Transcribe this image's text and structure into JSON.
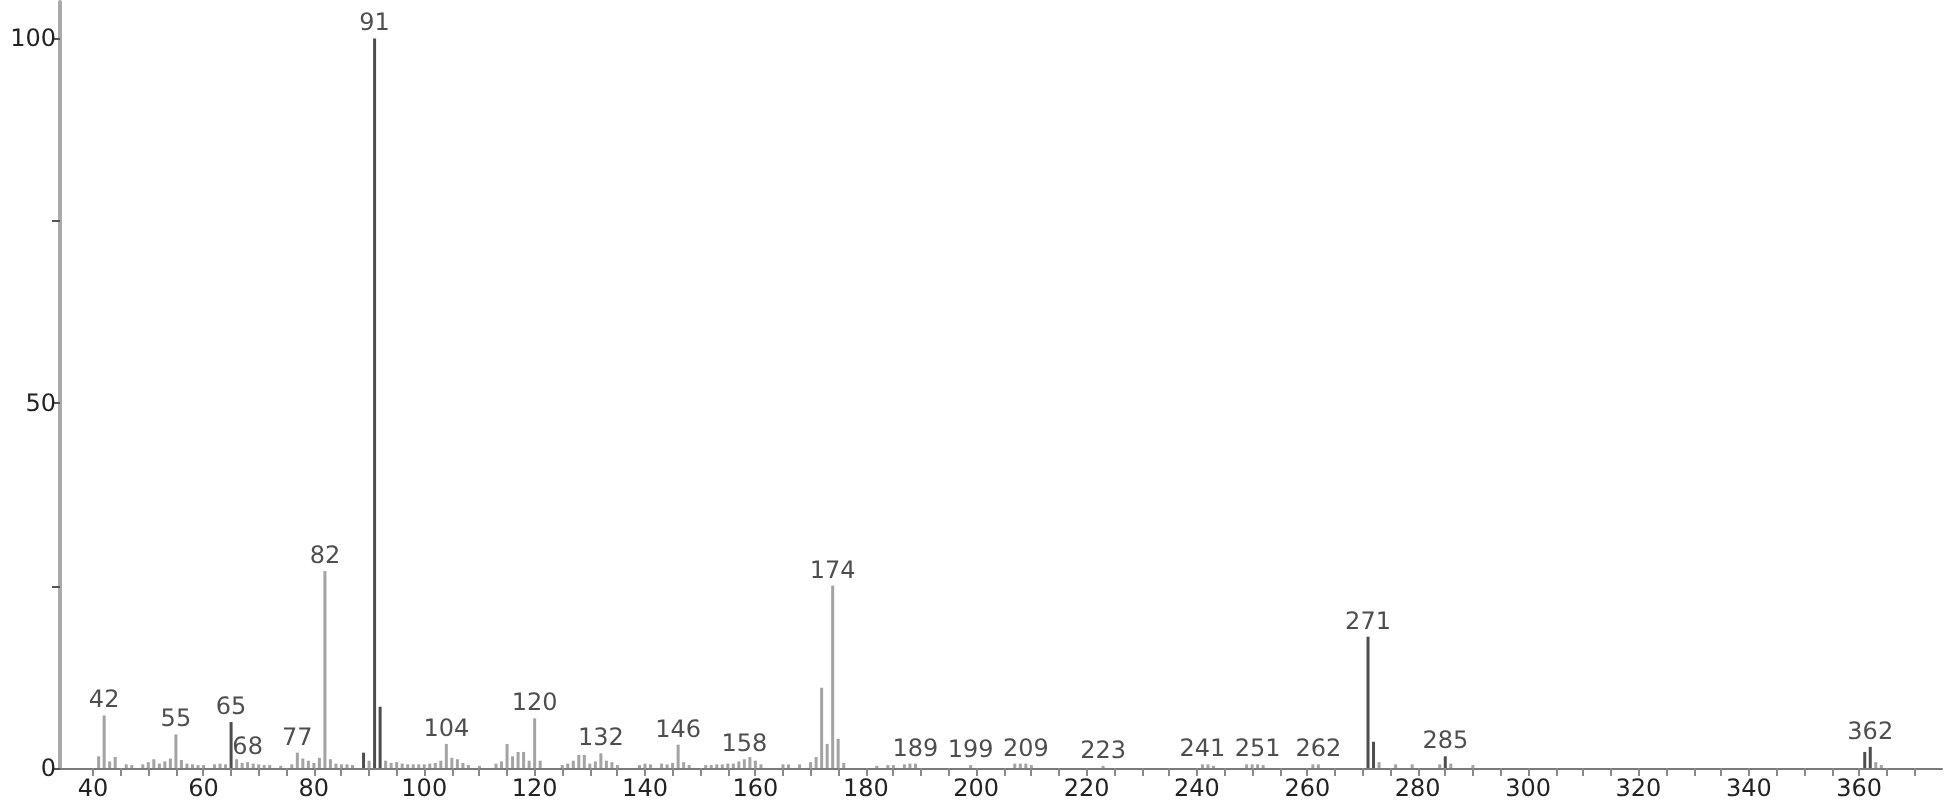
{
  "chart_data": {
    "type": "bar",
    "xlim": [
      34,
      375
    ],
    "xticks": [
      40,
      {
        "value": 45,
        "label": null
      },
      {
        "value": 50,
        "label": null
      },
      {
        "value": 55,
        "label": null
      },
      60,
      {
        "value": 65,
        "label": null
      },
      {
        "value": 70,
        "label": null
      },
      {
        "value": 75,
        "label": null
      },
      80,
      {
        "value": 85,
        "label": null
      },
      {
        "value": 90,
        "label": null
      },
      {
        "value": 95,
        "label": null
      },
      100,
      {
        "value": 105,
        "label": null
      },
      {
        "value": 110,
        "label": null
      },
      {
        "value": 115,
        "label": null
      },
      120,
      {
        "value": 125,
        "label": null
      },
      {
        "value": 130,
        "label": null
      },
      {
        "value": 135,
        "label": null
      },
      140,
      {
        "value": 145,
        "label": null
      },
      {
        "value": 150,
        "label": null
      },
      {
        "value": 155,
        "label": null
      },
      160,
      {
        "value": 165,
        "label": null
      },
      {
        "value": 170,
        "label": null
      },
      {
        "value": 175,
        "label": null
      },
      180,
      {
        "value": 185,
        "label": null
      },
      {
        "value": 190,
        "label": null
      },
      {
        "value": 195,
        "label": null
      },
      200,
      {
        "value": 205,
        "label": null
      },
      {
        "value": 210,
        "label": null
      },
      {
        "value": 215,
        "label": null
      },
      220,
      {
        "value": 225,
        "label": null
      },
      {
        "value": 230,
        "label": null
      },
      {
        "value": 235,
        "label": null
      },
      240,
      {
        "value": 245,
        "label": null
      },
      {
        "value": 250,
        "label": null
      },
      {
        "value": 255,
        "label": null
      },
      260,
      {
        "value": 265,
        "label": null
      },
      {
        "value": 270,
        "label": null
      },
      {
        "value": 275,
        "label": null
      },
      280,
      {
        "value": 285,
        "label": null
      },
      {
        "value": 290,
        "label": null
      },
      {
        "value": 295,
        "label": null
      },
      300,
      {
        "value": 305,
        "label": null
      },
      {
        "value": 310,
        "label": null
      },
      {
        "value": 315,
        "label": null
      },
      320,
      {
        "value": 325,
        "label": null
      },
      {
        "value": 330,
        "label": null
      },
      {
        "value": 335,
        "label": null
      },
      340,
      {
        "value": 345,
        "label": null
      },
      {
        "value": 350,
        "label": null
      },
      {
        "value": 355,
        "label": null
      },
      360,
      {
        "value": 365,
        "label": null
      },
      {
        "value": 370,
        "label": null
      }
    ],
    "ylim": [
      0,
      105
    ],
    "yticks": [
      0,
      {
        "value": 25,
        "label": null
      },
      50,
      {
        "value": 75,
        "label": null
      },
      100
    ],
    "grid": false,
    "series": [
      {
        "color": "#a3a3a3",
        "x": [
          41,
          42,
          43,
          44,
          46,
          47,
          49,
          50,
          51,
          52,
          53,
          54,
          55,
          56,
          57,
          58,
          59,
          60,
          62,
          63,
          64,
          66,
          67,
          68,
          69,
          70,
          71,
          72,
          74,
          76,
          77,
          78,
          79,
          80,
          81,
          82,
          83,
          84,
          85,
          86,
          87,
          90,
          93,
          94,
          95,
          96,
          97,
          98,
          99,
          100,
          101,
          102,
          103,
          104,
          105,
          106,
          107,
          108,
          110,
          113,
          114,
          115,
          116,
          117,
          118,
          119,
          120,
          121,
          125,
          126,
          127,
          128,
          129,
          130,
          131,
          132,
          133,
          134,
          135,
          139,
          140,
          141,
          143,
          144,
          145,
          146,
          147,
          148,
          151,
          152,
          153,
          154,
          155,
          156,
          157,
          158,
          159,
          160,
          161,
          165,
          166,
          168,
          170,
          171,
          172,
          173,
          174,
          175,
          176,
          182,
          184,
          185,
          187,
          188,
          189,
          199,
          207,
          208,
          209,
          210,
          223,
          241,
          242,
          243,
          249,
          250,
          251,
          252,
          261,
          262,
          273,
          276,
          279,
          284,
          286,
          290,
          363,
          364
        ],
        "values": [
          1.6,
          7.2,
          0.9,
          1.5,
          0.5,
          0.4,
          0.5,
          0.8,
          1.2,
          0.6,
          0.9,
          1.3,
          4.6,
          1.1,
          0.6,
          0.5,
          0.4,
          0.4,
          0.5,
          0.6,
          0.5,
          1.2,
          0.7,
          0.8,
          0.6,
          0.5,
          0.4,
          0.4,
          0.3,
          0.5,
          2.1,
          1.3,
          1.0,
          0.7,
          1.4,
          27,
          1.2,
          0.6,
          0.5,
          0.5,
          0.4,
          1.0,
          1.0,
          0.7,
          0.8,
          0.6,
          0.5,
          0.5,
          0.5,
          0.5,
          0.6,
          0.7,
          1.0,
          3.3,
          1.4,
          1.2,
          0.7,
          0.4,
          0.3,
          0.6,
          0.9,
          3.3,
          1.6,
          2.2,
          2.2,
          1.0,
          6.8,
          1.0,
          0.4,
          0.6,
          1.0,
          1.8,
          1.8,
          0.6,
          0.9,
          2.0,
          1.0,
          0.8,
          0.4,
          0.4,
          0.6,
          0.5,
          0.6,
          0.5,
          0.7,
          3.2,
          0.8,
          0.4,
          0.4,
          0.4,
          0.5,
          0.5,
          0.6,
          0.6,
          0.9,
          1.2,
          1.5,
          1.0,
          0.5,
          0.5,
          0.5,
          0.5,
          0.8,
          1.5,
          11,
          3.3,
          25,
          4,
          0.7,
          0.3,
          0.4,
          0.4,
          0.5,
          0.6,
          0.6,
          0.4,
          0.6,
          0.6,
          0.6,
          0.4,
          0.3,
          0.5,
          0.5,
          0.3,
          0.5,
          0.5,
          0.5,
          0.4,
          0.5,
          0.5,
          0.8,
          0.5,
          0.5,
          0.5,
          0.6,
          0.4,
          0.8,
          0.4
        ]
      },
      {
        "color": "#4d4d4d",
        "x": [
          65,
          89,
          91,
          92,
          271,
          272,
          285,
          361,
          362
        ],
        "values": [
          6.3,
          2.1,
          100,
          8.4,
          18,
          3.6,
          1.6,
          2.2,
          2.9
        ]
      }
    ],
    "annotations": [
      {
        "text": "42",
        "x": 42,
        "y": 7.2
      },
      {
        "text": "55",
        "x": 55,
        "y": 4.6
      },
      {
        "text": "65",
        "x": 65,
        "y": 6.3
      },
      {
        "text": "68",
        "x": 68,
        "y": 0.8
      },
      {
        "text": "77",
        "x": 77,
        "y": 2.1
      },
      {
        "text": "82",
        "x": 82,
        "y": 27
      },
      {
        "text": "91",
        "x": 91,
        "y": 100
      },
      {
        "text": "104",
        "x": 104,
        "y": 3.3
      },
      {
        "text": "120",
        "x": 120,
        "y": 6.8
      },
      {
        "text": "132",
        "x": 132,
        "y": 2.0
      },
      {
        "text": "146",
        "x": 146,
        "y": 3.2
      },
      {
        "text": "158",
        "x": 158,
        "y": 1.2
      },
      {
        "text": "174",
        "x": 174,
        "y": 25
      },
      {
        "text": "189",
        "x": 189,
        "y": 0.6
      },
      {
        "text": "199",
        "x": 199,
        "y": 0.4
      },
      {
        "text": "209",
        "x": 209,
        "y": 0.6
      },
      {
        "text": "223",
        "x": 223,
        "y": 0.3
      },
      {
        "text": "241",
        "x": 241,
        "y": 0.5
      },
      {
        "text": "251",
        "x": 251,
        "y": 0.5
      },
      {
        "text": "262",
        "x": 262,
        "y": 0.5
      },
      {
        "text": "271",
        "x": 271,
        "y": 18
      },
      {
        "text": "285",
        "x": 285,
        "y": 1.6
      },
      {
        "text": "362",
        "x": 362,
        "y": 2.9
      }
    ]
  }
}
